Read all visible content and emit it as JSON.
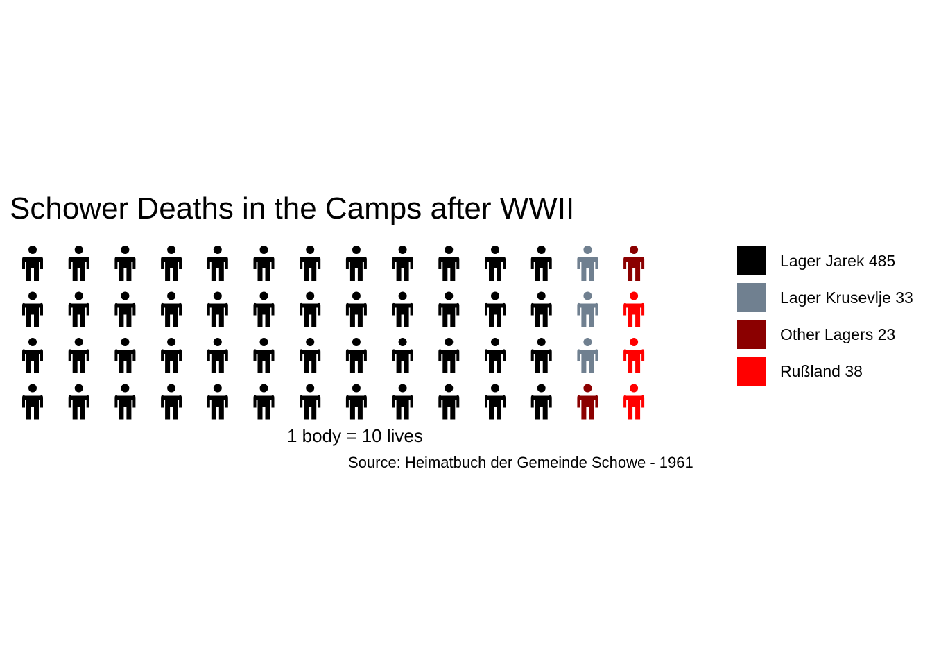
{
  "chart_data": {
    "type": "waffle",
    "title": "Schower Deaths in the Camps after WWII",
    "caption": "1 body = 10 lives",
    "source": "Source: Heimatbuch der Gemeinde Schowe - 1961",
    "rows": 4,
    "columns": 14,
    "unit_value": 10,
    "categories": [
      {
        "name": "Lager Jarek",
        "value": 485,
        "label": "Lager Jarek 485",
        "icons": 48,
        "color": "#000000"
      },
      {
        "name": "Lager Krusevlje",
        "value": 33,
        "label": "Lager Krusevlje 33",
        "icons": 3,
        "color": "#708090"
      },
      {
        "name": "Other Lagers",
        "value": 23,
        "label": "Other Lagers 23",
        "icons": 2,
        "color": "#8B0000"
      },
      {
        "name": "Rußland",
        "value": 38,
        "label": "Rußland 38",
        "icons": 4,
        "color": "#FF0000"
      }
    ],
    "fill_order": "column-major",
    "icon": "person-icon",
    "legend_position": "right"
  }
}
